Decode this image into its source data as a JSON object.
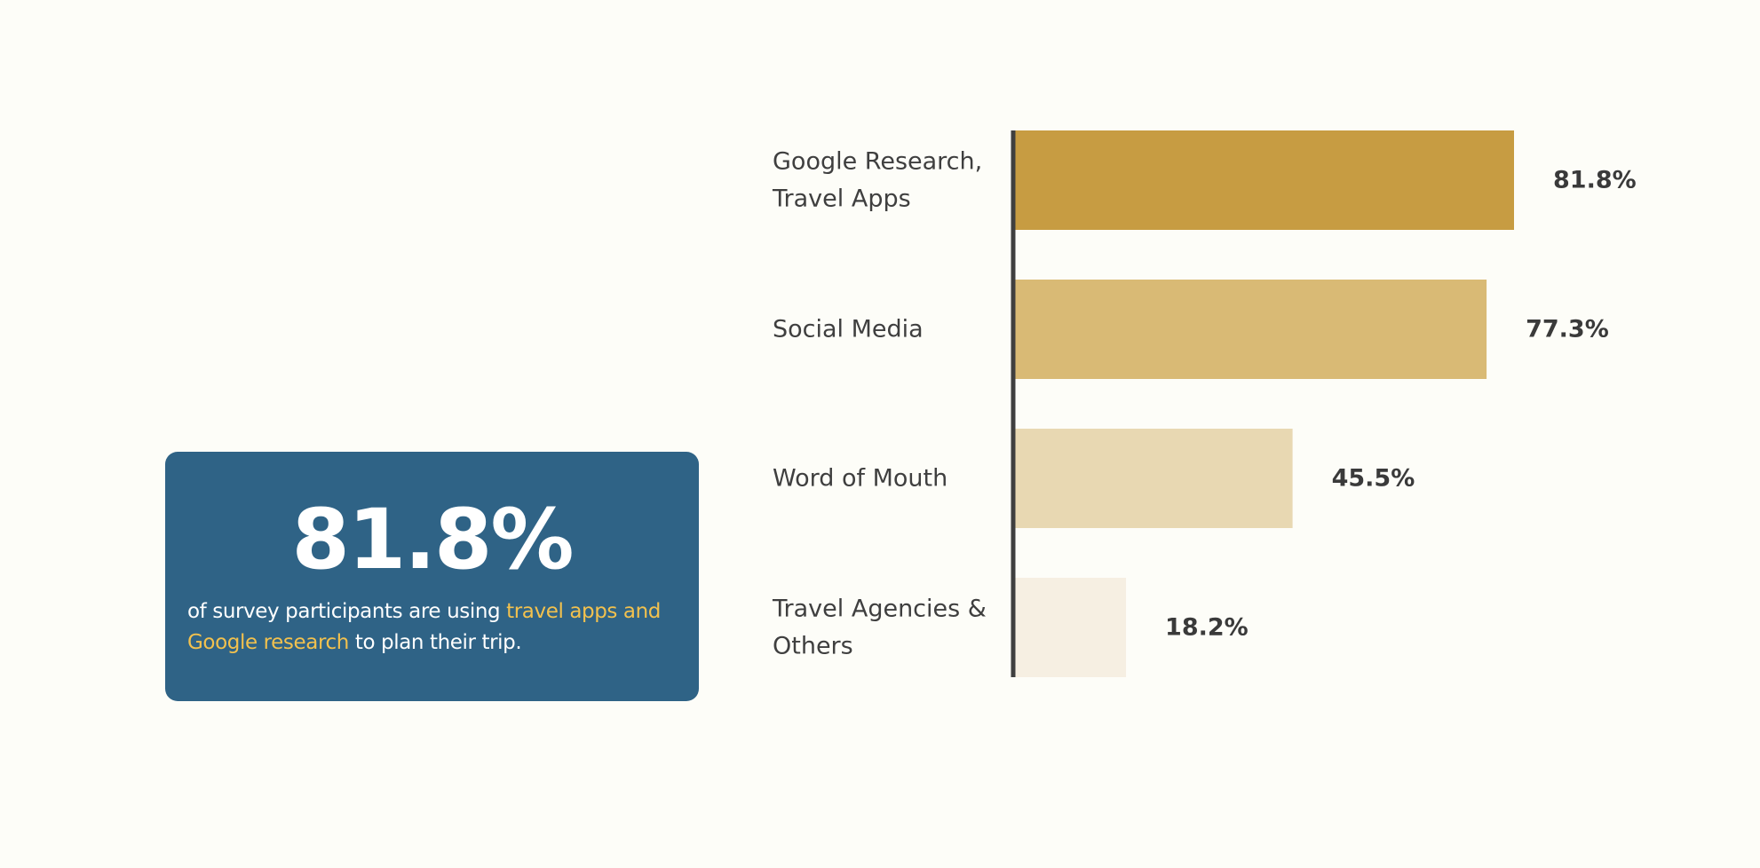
{
  "stat_card": {
    "value": "81.8%",
    "caption_before": "of survey participants are using ",
    "caption_highlight": "travel apps and Google research",
    "caption_after": " to plan their trip.",
    "background_color": "#2f6386",
    "highlight_color": "#f2c14e"
  },
  "chart_data": {
    "type": "bar",
    "orientation": "horizontal",
    "categories": [
      [
        "Google Research,",
        "Travel Apps"
      ],
      [
        "Social Media"
      ],
      [
        "Word of Mouth"
      ],
      [
        "Travel Agencies &",
        "Others"
      ]
    ],
    "values": [
      81.8,
      77.3,
      45.5,
      18.2
    ],
    "value_labels": [
      "81.8%",
      "77.3%",
      "45.5%",
      "18.2%"
    ],
    "colors": [
      "#c79c42",
      "#d9ba75",
      "#e8d8b2",
      "#f6efe2"
    ],
    "axis_color": "#3f3f3f",
    "xlim": [
      0,
      100
    ],
    "grid": false
  }
}
